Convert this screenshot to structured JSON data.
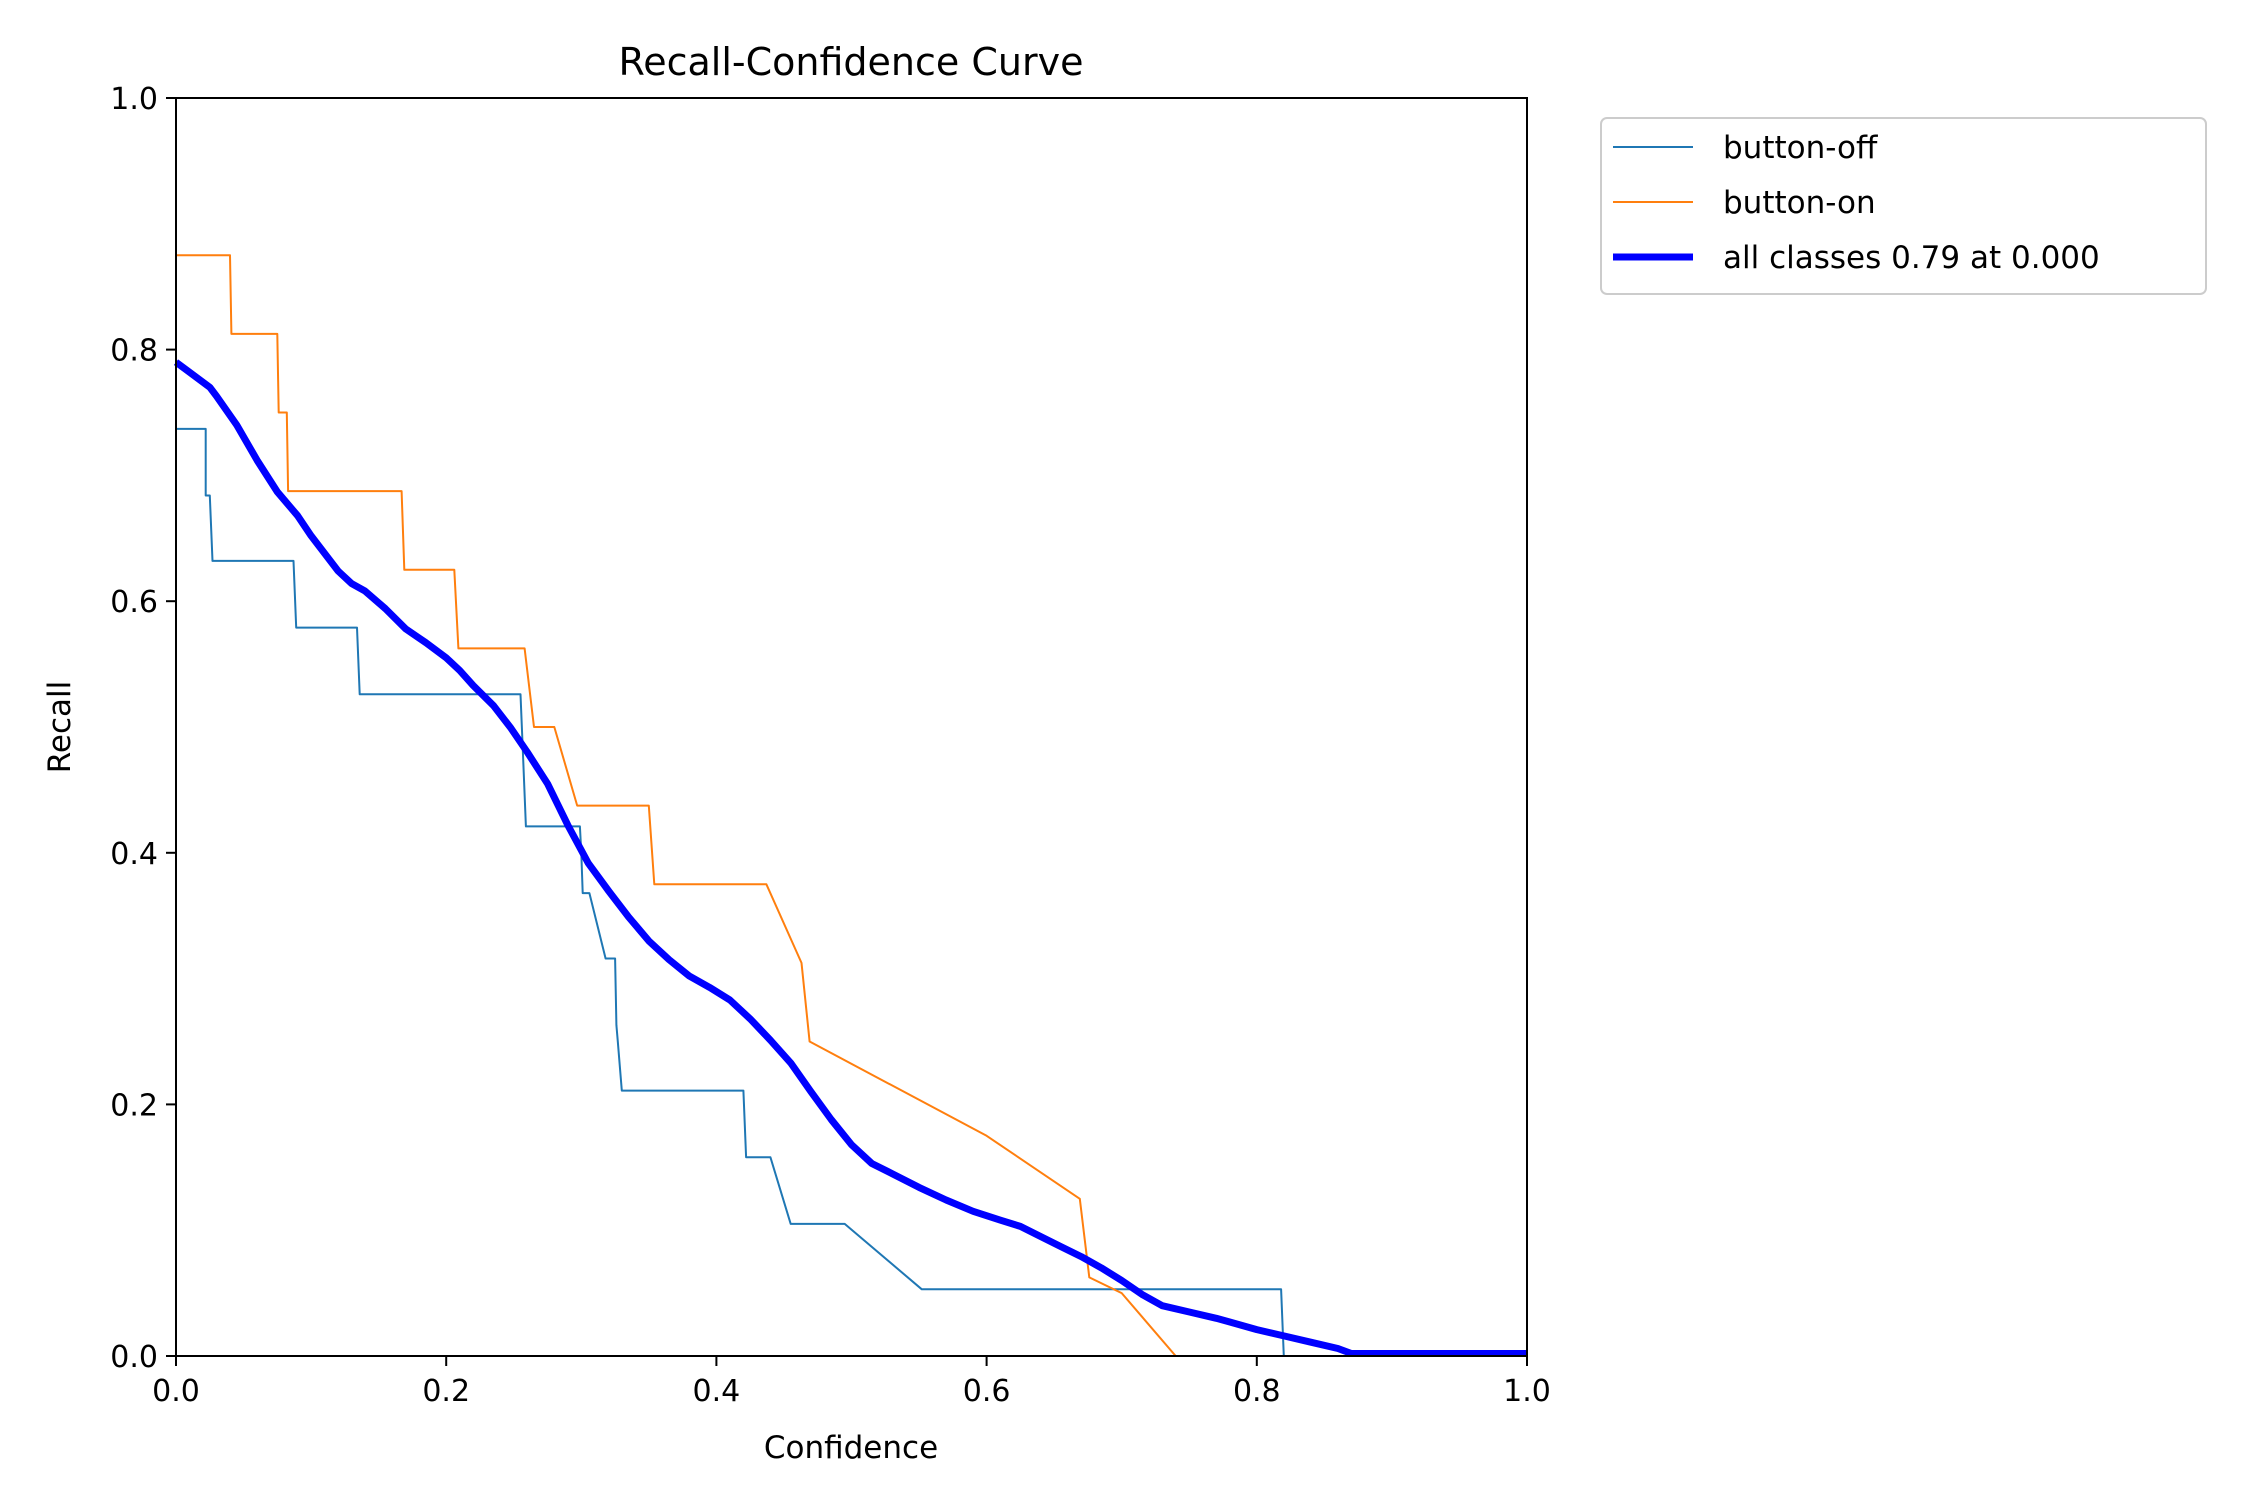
{
  "chart_data": {
    "type": "line",
    "title": "Recall-Confidence Curve",
    "xlabel": "Confidence",
    "ylabel": "Recall",
    "xlim": [
      0,
      1
    ],
    "ylim": [
      0,
      1
    ],
    "xticks": [
      "0.0",
      "0.2",
      "0.4",
      "0.6",
      "0.8",
      "1.0"
    ],
    "yticks": [
      "0.0",
      "0.2",
      "0.4",
      "0.6",
      "0.8",
      "1.0"
    ],
    "grid": false,
    "legend_position": "outside-top-right",
    "series": [
      {
        "name": "button-off",
        "color": "#1f77b4",
        "x": [
          0.0,
          0.022,
          0.022,
          0.025,
          0.027,
          0.087,
          0.089,
          0.134,
          0.136,
          0.255,
          0.257,
          0.259,
          0.299,
          0.3,
          0.301,
          0.306,
          0.318,
          0.325,
          0.326,
          0.327,
          0.33,
          0.334,
          0.42,
          0.422,
          0.44,
          0.455,
          0.495,
          0.552,
          0.818,
          0.82,
          1.0
        ],
        "y": [
          0.737,
          0.737,
          0.684,
          0.684,
          0.632,
          0.632,
          0.579,
          0.579,
          0.526,
          0.526,
          0.474,
          0.421,
          0.421,
          0.4,
          0.368,
          0.368,
          0.316,
          0.316,
          0.263,
          0.25,
          0.211,
          0.211,
          0.211,
          0.158,
          0.158,
          0.105,
          0.105,
          0.053,
          0.053,
          0.0,
          0.0
        ]
      },
      {
        "name": "button-on",
        "color": "#ff7f0e",
        "x": [
          0.0,
          0.04,
          0.041,
          0.075,
          0.076,
          0.082,
          0.083,
          0.167,
          0.169,
          0.172,
          0.206,
          0.209,
          0.258,
          0.265,
          0.28,
          0.297,
          0.35,
          0.354,
          0.437,
          0.463,
          0.469,
          0.6,
          0.669,
          0.676,
          0.7,
          0.74,
          0.85,
          1.0
        ],
        "y": [
          0.875,
          0.875,
          0.8125,
          0.8125,
          0.75,
          0.75,
          0.6875,
          0.6875,
          0.625,
          0.625,
          0.625,
          0.5625,
          0.5625,
          0.5,
          0.5,
          0.4375,
          0.4375,
          0.375,
          0.375,
          0.3125,
          0.25,
          0.175,
          0.125,
          0.0625,
          0.05,
          0.0,
          0.0,
          0.0
        ]
      },
      {
        "name": "all classes 0.79 at 0.000",
        "color": "#0000ff",
        "x": [
          0.0,
          0.01,
          0.025,
          0.03,
          0.045,
          0.06,
          0.075,
          0.09,
          0.1,
          0.11,
          0.12,
          0.13,
          0.14,
          0.155,
          0.17,
          0.185,
          0.2,
          0.21,
          0.22,
          0.235,
          0.248,
          0.26,
          0.275,
          0.29,
          0.305,
          0.32,
          0.335,
          0.35,
          0.365,
          0.38,
          0.395,
          0.41,
          0.425,
          0.44,
          0.455,
          0.47,
          0.485,
          0.5,
          0.515,
          0.53,
          0.55,
          0.57,
          0.59,
          0.61,
          0.625,
          0.64,
          0.655,
          0.67,
          0.685,
          0.7,
          0.715,
          0.73,
          0.75,
          0.77,
          0.78,
          0.8,
          0.82,
          0.84,
          0.86,
          0.87,
          1.0
        ],
        "y": [
          0.79,
          0.782,
          0.77,
          0.763,
          0.74,
          0.712,
          0.687,
          0.668,
          0.652,
          0.638,
          0.624,
          0.614,
          0.608,
          0.594,
          0.578,
          0.567,
          0.555,
          0.545,
          0.533,
          0.517,
          0.499,
          0.48,
          0.455,
          0.422,
          0.392,
          0.37,
          0.349,
          0.33,
          0.315,
          0.302,
          0.293,
          0.283,
          0.268,
          0.251,
          0.233,
          0.21,
          0.188,
          0.168,
          0.153,
          0.145,
          0.134,
          0.124,
          0.115,
          0.108,
          0.103,
          0.095,
          0.087,
          0.079,
          0.07,
          0.06,
          0.049,
          0.04,
          0.035,
          0.03,
          0.027,
          0.021,
          0.016,
          0.011,
          0.006,
          0.002,
          0.002
        ]
      }
    ]
  }
}
